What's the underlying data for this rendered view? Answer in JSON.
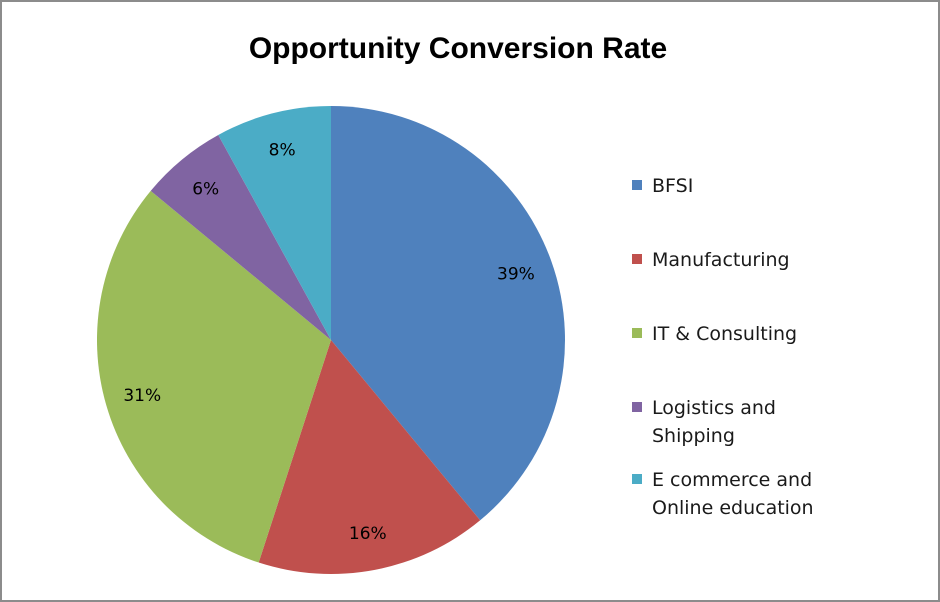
{
  "chart_data": {
    "type": "pie",
    "title": "Opportunity Conversion Rate",
    "legend_position": "right",
    "slices": [
      {
        "name": "BFSI",
        "value": 39,
        "label": "39%",
        "color": "#4F81BD"
      },
      {
        "name": "Manufacturing",
        "value": 16,
        "label": "16%",
        "color": "#C0504D"
      },
      {
        "name": "IT & Consulting",
        "value": 31,
        "label": "31%",
        "color": "#9BBB59"
      },
      {
        "name": "Logistics and Shipping",
        "value": 6,
        "label": "6%",
        "color": "#8064A2"
      },
      {
        "name": "E commerce and Online education",
        "value": 8,
        "label": "8%",
        "color": "#4BACC6"
      }
    ]
  }
}
